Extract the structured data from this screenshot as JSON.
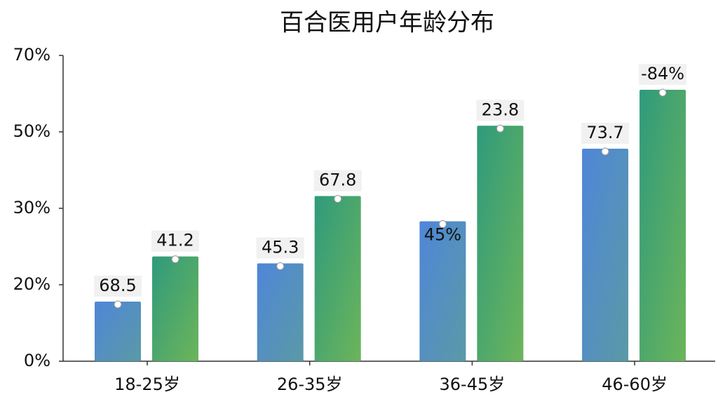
{
  "chart_data": {
    "type": "bar",
    "title": "百合医用户年龄分布",
    "categories": [
      "18-25岁",
      "26-35岁",
      "36-45岁",
      "46-60岁"
    ],
    "series": [
      {
        "color": "#4f86d8",
        "values": [
          15.6,
          22.8,
          28.3,
          45.6
        ]
      },
      {
        "color": "#2f9a7c",
        "values": [
          23.7,
          33.2,
          51.6,
          61
        ]
      }
    ],
    "annotations": [
      "68.5",
      "41.2",
      "45.3",
      "67.8",
      "45%",
      "23.8",
      "73.7",
      "-84%"
    ],
    "ylim": [
      0,
      70
    ],
    "yticks": [
      {
        "value": 0,
        "label": "0%"
      },
      {
        "value": 20,
        "label": "20%"
      },
      {
        "value": 30,
        "label": "30%"
      },
      {
        "value": 50,
        "label": "50%"
      },
      {
        "value": 70,
        "label": "70%"
      }
    ]
  }
}
